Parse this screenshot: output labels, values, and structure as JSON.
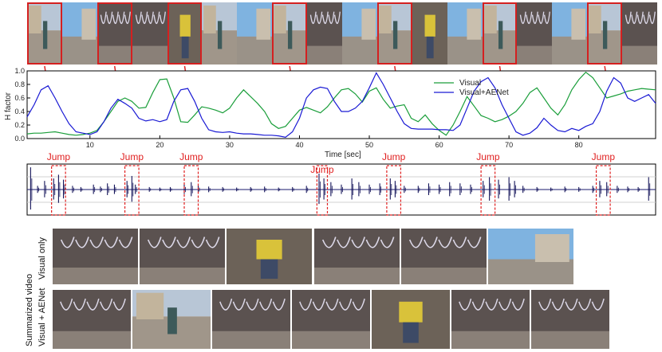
{
  "top_strip": {
    "frames": [
      {
        "scene": "street"
      },
      {
        "scene": "sky"
      },
      {
        "scene": "graffiti"
      },
      {
        "scene": "graffiti"
      },
      {
        "scene": "yellow"
      },
      {
        "scene": "street"
      },
      {
        "scene": "sky"
      },
      {
        "scene": "street"
      },
      {
        "scene": "graffiti"
      },
      {
        "scene": "sky"
      },
      {
        "scene": "street"
      },
      {
        "scene": "yellow"
      },
      {
        "scene": "sky"
      },
      {
        "scene": "street"
      },
      {
        "scene": "graffiti"
      },
      {
        "scene": "sky"
      },
      {
        "scene": "street"
      },
      {
        "scene": "graffiti"
      }
    ],
    "highlighted_indices": [
      0,
      2,
      4,
      7,
      10,
      13,
      16
    ]
  },
  "chart_data": {
    "type": "line",
    "xlabel": "Time [sec]",
    "ylabel": "H factor",
    "xlim": [
      1,
      91
    ],
    "ylim": [
      0.0,
      1.0
    ],
    "xticks": [
      "10",
      "20",
      "30",
      "40",
      "50",
      "60",
      "70",
      "80"
    ],
    "xtick_values": [
      10,
      20,
      30,
      40,
      50,
      60,
      70,
      80
    ],
    "yticks": [
      "0.0",
      "0.2",
      "0.4",
      "0.6",
      "0.8",
      "1.0"
    ],
    "ytick_values": [
      0.0,
      0.2,
      0.4,
      0.6,
      0.8,
      1.0
    ],
    "legend_position": "top-right",
    "series": [
      {
        "name": "Visual",
        "color": "#1a9e3a",
        "x": [
          1,
          2,
          3,
          4,
          5,
          6,
          7,
          8,
          9,
          10,
          11,
          12,
          13,
          14,
          15,
          16,
          17,
          18,
          19,
          20,
          21,
          22,
          23,
          24,
          25,
          26,
          27,
          28,
          29,
          30,
          31,
          32,
          33,
          34,
          35,
          36,
          37,
          38,
          39,
          40,
          41,
          42,
          43,
          44,
          45,
          46,
          47,
          48,
          49,
          50,
          51,
          52,
          53,
          54,
          55,
          56,
          57,
          58,
          59,
          60,
          61,
          62,
          63,
          64,
          65,
          66,
          67,
          68,
          69,
          70,
          71,
          72,
          73,
          74,
          75,
          76,
          77,
          78,
          79,
          80,
          81,
          82,
          83,
          84,
          85,
          86,
          87,
          88,
          89,
          90,
          91
        ],
        "y": [
          0.07,
          0.08,
          0.08,
          0.09,
          0.1,
          0.08,
          0.06,
          0.05,
          0.06,
          0.08,
          0.12,
          0.25,
          0.4,
          0.55,
          0.6,
          0.55,
          0.45,
          0.46,
          0.68,
          0.87,
          0.88,
          0.6,
          0.25,
          0.24,
          0.35,
          0.47,
          0.45,
          0.42,
          0.38,
          0.45,
          0.6,
          0.72,
          0.62,
          0.52,
          0.4,
          0.22,
          0.15,
          0.18,
          0.3,
          0.42,
          0.46,
          0.42,
          0.38,
          0.47,
          0.6,
          0.72,
          0.74,
          0.66,
          0.54,
          0.7,
          0.75,
          0.58,
          0.45,
          0.48,
          0.5,
          0.3,
          0.25,
          0.35,
          0.22,
          0.12,
          0.05,
          0.2,
          0.4,
          0.62,
          0.48,
          0.34,
          0.3,
          0.25,
          0.28,
          0.33,
          0.4,
          0.52,
          0.68,
          0.75,
          0.6,
          0.45,
          0.35,
          0.5,
          0.72,
          0.87,
          0.98,
          0.9,
          0.75,
          0.6,
          0.63,
          0.66,
          0.7,
          0.72,
          0.74,
          0.73,
          0.72
        ]
      },
      {
        "name": "Visual+AENet",
        "color": "#1a1ad4",
        "x": [
          1,
          2,
          3,
          4,
          5,
          6,
          7,
          8,
          9,
          10,
          11,
          12,
          13,
          14,
          15,
          16,
          17,
          18,
          19,
          20,
          21,
          22,
          23,
          24,
          25,
          26,
          27,
          28,
          29,
          30,
          31,
          32,
          33,
          34,
          35,
          36,
          37,
          38,
          39,
          40,
          41,
          42,
          43,
          44,
          45,
          46,
          47,
          48,
          49,
          50,
          51,
          52,
          53,
          54,
          55,
          56,
          57,
          58,
          59,
          60,
          61,
          62,
          63,
          64,
          65,
          66,
          67,
          68,
          69,
          70,
          71,
          72,
          73,
          74,
          75,
          76,
          77,
          78,
          79,
          80,
          81,
          82,
          83,
          84,
          85,
          86,
          87,
          88,
          89,
          90,
          91
        ],
        "y": [
          0.32,
          0.5,
          0.72,
          0.78,
          0.6,
          0.4,
          0.22,
          0.1,
          0.08,
          0.06,
          0.1,
          0.25,
          0.45,
          0.58,
          0.52,
          0.45,
          0.3,
          0.26,
          0.28,
          0.25,
          0.28,
          0.55,
          0.72,
          0.74,
          0.55,
          0.3,
          0.13,
          0.1,
          0.09,
          0.1,
          0.08,
          0.07,
          0.07,
          0.06,
          0.05,
          0.05,
          0.04,
          0.02,
          0.1,
          0.3,
          0.6,
          0.72,
          0.76,
          0.74,
          0.55,
          0.4,
          0.4,
          0.45,
          0.55,
          0.75,
          0.97,
          0.8,
          0.6,
          0.4,
          0.22,
          0.15,
          0.14,
          0.14,
          0.14,
          0.13,
          0.13,
          0.12,
          0.2,
          0.45,
          0.7,
          0.84,
          0.9,
          0.75,
          0.5,
          0.3,
          0.1,
          0.05,
          0.08,
          0.16,
          0.3,
          0.2,
          0.12,
          0.1,
          0.15,
          0.12,
          0.18,
          0.22,
          0.4,
          0.7,
          0.9,
          0.82,
          0.6,
          0.55,
          0.6,
          0.65,
          0.52
        ]
      }
    ]
  },
  "audio": {
    "jump_label": "Jump",
    "jumps": [
      {
        "start": 4.5,
        "end": 6.5
      },
      {
        "start": 15.0,
        "end": 17.0
      },
      {
        "start": 23.5,
        "end": 25.5
      },
      {
        "start": 42.5,
        "end": 44.0
      },
      {
        "start": 52.5,
        "end": 54.5
      },
      {
        "start": 66.0,
        "end": 68.0
      },
      {
        "start": 82.5,
        "end": 84.5
      }
    ],
    "spikes": [
      {
        "t": 1.5,
        "a": 0.9
      },
      {
        "t": 2.5,
        "a": 0.15
      },
      {
        "t": 3.5,
        "a": 0.35
      },
      {
        "t": 4.8,
        "a": 0.45
      },
      {
        "t": 5.5,
        "a": 0.6
      },
      {
        "t": 6.2,
        "a": 0.4
      },
      {
        "t": 7.5,
        "a": 0.15
      },
      {
        "t": 8.7,
        "a": 0.1
      },
      {
        "t": 10.5,
        "a": 0.2
      },
      {
        "t": 11.5,
        "a": 0.12
      },
      {
        "t": 12.5,
        "a": 0.25
      },
      {
        "t": 13.5,
        "a": 0.2
      },
      {
        "t": 15.3,
        "a": 0.35
      },
      {
        "t": 16.0,
        "a": 0.55
      },
      {
        "t": 16.5,
        "a": 0.2
      },
      {
        "t": 18.5,
        "a": 0.1
      },
      {
        "t": 20.0,
        "a": 0.08
      },
      {
        "t": 21.5,
        "a": 0.1
      },
      {
        "t": 23.5,
        "a": 0.2
      },
      {
        "t": 24.5,
        "a": 0.3
      },
      {
        "t": 25.5,
        "a": 0.15
      },
      {
        "t": 27.0,
        "a": 0.12
      },
      {
        "t": 29.0,
        "a": 0.1
      },
      {
        "t": 31.0,
        "a": 0.08
      },
      {
        "t": 33.0,
        "a": 0.1
      },
      {
        "t": 35.0,
        "a": 0.12
      },
      {
        "t": 37.0,
        "a": 0.08
      },
      {
        "t": 39.0,
        "a": 0.1
      },
      {
        "t": 41.0,
        "a": 0.15
      },
      {
        "t": 42.8,
        "a": 0.65
      },
      {
        "t": 43.5,
        "a": 0.45
      },
      {
        "t": 44.5,
        "a": 0.3
      },
      {
        "t": 46.0,
        "a": 0.2
      },
      {
        "t": 47.5,
        "a": 0.45
      },
      {
        "t": 48.5,
        "a": 0.3
      },
      {
        "t": 50.0,
        "a": 0.2
      },
      {
        "t": 51.5,
        "a": 0.25
      },
      {
        "t": 53.0,
        "a": 0.45
      },
      {
        "t": 53.7,
        "a": 0.35
      },
      {
        "t": 55.0,
        "a": 0.15
      },
      {
        "t": 57.0,
        "a": 0.15
      },
      {
        "t": 58.5,
        "a": 0.25
      },
      {
        "t": 60.0,
        "a": 0.2
      },
      {
        "t": 61.5,
        "a": 0.3
      },
      {
        "t": 63.0,
        "a": 0.25
      },
      {
        "t": 64.5,
        "a": 0.2
      },
      {
        "t": 66.3,
        "a": 0.35
      },
      {
        "t": 67.2,
        "a": 0.5
      },
      {
        "t": 68.5,
        "a": 0.4
      },
      {
        "t": 70.0,
        "a": 0.5
      },
      {
        "t": 70.8,
        "a": 0.35
      },
      {
        "t": 72.0,
        "a": 0.15
      },
      {
        "t": 74.0,
        "a": 0.1
      },
      {
        "t": 76.0,
        "a": 0.08
      },
      {
        "t": 78.0,
        "a": 0.12
      },
      {
        "t": 80.0,
        "a": 0.1
      },
      {
        "t": 82.0,
        "a": 0.15
      },
      {
        "t": 83.0,
        "a": 0.35
      },
      {
        "t": 84.0,
        "a": 0.3
      },
      {
        "t": 85.5,
        "a": 0.15
      },
      {
        "t": 87.0,
        "a": 0.12
      },
      {
        "t": 88.5,
        "a": 0.1
      },
      {
        "t": 90.0,
        "a": 0.5
      }
    ]
  },
  "summary": {
    "group_label": "Summarized video",
    "visual_only_label": "Visual only",
    "aenet_label": "Visual + AENet",
    "visual_only_frames": [
      {
        "scene": "graffiti"
      },
      {
        "scene": "graffiti"
      },
      {
        "scene": "yellow"
      },
      {
        "scene": "graffiti"
      },
      {
        "scene": "graffiti"
      },
      {
        "scene": "sky"
      }
    ],
    "aenet_frames": [
      {
        "scene": "graffiti"
      },
      {
        "scene": "street"
      },
      {
        "scene": "graffiti"
      },
      {
        "scene": "graffiti"
      },
      {
        "scene": "yellow"
      },
      {
        "scene": "graffiti"
      },
      {
        "scene": "graffiti"
      }
    ]
  }
}
